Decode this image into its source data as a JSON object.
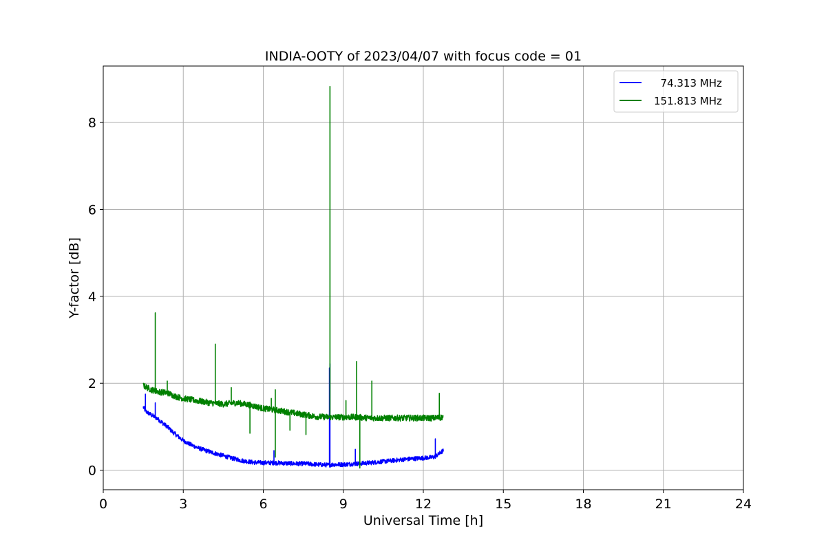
{
  "chart_data": {
    "type": "line",
    "title": "INDIA-OOTY of 2023/04/07 with focus code = 01",
    "xlabel": "Universal Time [h]",
    "ylabel": "Y-factor [dB]",
    "xlim": [
      0,
      24
    ],
    "ylim": [
      -0.45,
      9.3
    ],
    "xticks": [
      0,
      3,
      6,
      9,
      12,
      15,
      18,
      21,
      24
    ],
    "yticks": [
      0,
      2,
      4,
      6,
      8
    ],
    "grid": true,
    "legend_position": "top-right",
    "series": [
      {
        "name": "  74.313 MHz",
        "color": "#0000ff",
        "noise": 0.05,
        "x": [
          1.5,
          1.55,
          1.6,
          1.8,
          2.0,
          2.2,
          2.4,
          2.6,
          2.8,
          3.0,
          3.3,
          3.6,
          4.0,
          4.4,
          4.8,
          5.2,
          5.6,
          6.0,
          6.4,
          6.8,
          7.2,
          7.6,
          8.0,
          8.4,
          8.5,
          8.6,
          9.0,
          9.5,
          10.0,
          10.5,
          11.0,
          11.5,
          12.0,
          12.4,
          12.6,
          12.75
        ],
        "y": [
          1.45,
          1.4,
          1.35,
          1.27,
          1.2,
          1.1,
          1.0,
          0.88,
          0.78,
          0.68,
          0.58,
          0.5,
          0.42,
          0.35,
          0.28,
          0.22,
          0.18,
          0.17,
          0.17,
          0.16,
          0.15,
          0.15,
          0.13,
          0.12,
          0.12,
          0.13,
          0.13,
          0.15,
          0.17,
          0.2,
          0.23,
          0.26,
          0.28,
          0.3,
          0.38,
          0.45
        ],
        "spikes": [
          {
            "x": 1.58,
            "y": 1.75
          },
          {
            "x": 1.95,
            "y": 1.55
          },
          {
            "x": 6.4,
            "y": 0.45
          },
          {
            "x": 8.48,
            "y": 2.35
          },
          {
            "x": 8.5,
            "y": 2.45
          },
          {
            "x": 9.45,
            "y": 0.48
          },
          {
            "x": 12.45,
            "y": 0.72
          }
        ]
      },
      {
        "name": "151.813 MHz",
        "color": "#008000",
        "noise": 0.07,
        "x": [
          1.5,
          1.8,
          2.1,
          2.4,
          2.7,
          3.0,
          3.5,
          4.0,
          4.5,
          5.0,
          5.5,
          6.0,
          6.5,
          7.0,
          7.5,
          8.0,
          8.5,
          9.0,
          9.5,
          10.0,
          10.5,
          11.0,
          11.5,
          12.0,
          12.4,
          12.75
        ],
        "y": [
          1.95,
          1.85,
          1.8,
          1.78,
          1.7,
          1.65,
          1.6,
          1.55,
          1.52,
          1.55,
          1.5,
          1.42,
          1.38,
          1.33,
          1.28,
          1.23,
          1.22,
          1.22,
          1.22,
          1.2,
          1.2,
          1.2,
          1.2,
          1.2,
          1.2,
          1.22
        ],
        "spikes": [
          {
            "x": 1.95,
            "y": 3.62
          },
          {
            "x": 2.4,
            "y": 2.05
          },
          {
            "x": 4.2,
            "y": 2.9
          },
          {
            "x": 4.8,
            "y": 1.9
          },
          {
            "x": 5.5,
            "y": 0.85
          },
          {
            "x": 6.3,
            "y": 1.65
          },
          {
            "x": 6.45,
            "y": 1.85
          },
          {
            "x": 6.45,
            "y": 0.3
          },
          {
            "x": 7.0,
            "y": 0.92
          },
          {
            "x": 7.6,
            "y": 0.82
          },
          {
            "x": 8.5,
            "y": 8.83
          },
          {
            "x": 9.1,
            "y": 1.6
          },
          {
            "x": 9.5,
            "y": 2.5
          },
          {
            "x": 9.62,
            "y": 0.05
          },
          {
            "x": 10.07,
            "y": 2.05
          },
          {
            "x": 12.6,
            "y": 1.77
          }
        ]
      }
    ]
  }
}
